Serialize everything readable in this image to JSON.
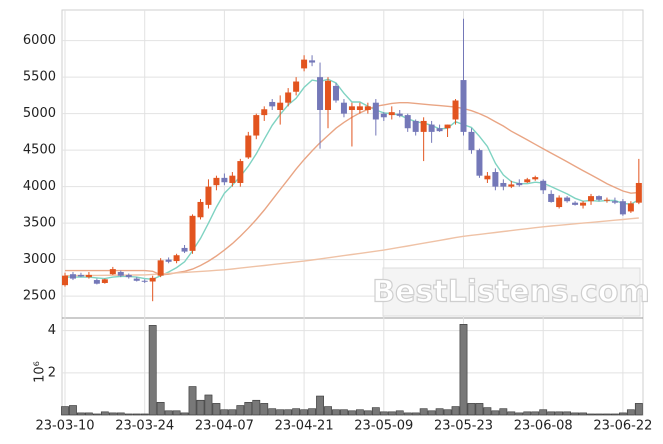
{
  "chart_data": [
    {
      "type": "candlestick",
      "categories": [
        "23-03-10",
        null,
        null,
        null,
        null,
        null,
        null,
        null,
        null,
        null,
        "23-03-24",
        null,
        null,
        null,
        null,
        null,
        null,
        null,
        null,
        null,
        "23-04-07",
        null,
        null,
        null,
        null,
        null,
        null,
        null,
        null,
        null,
        "23-04-21",
        null,
        null,
        null,
        null,
        null,
        null,
        null,
        null,
        null,
        "23-05-09",
        null,
        null,
        null,
        null,
        null,
        null,
        null,
        null,
        null,
        "23-05-23",
        null,
        null,
        null,
        null,
        null,
        null,
        null,
        null,
        null,
        "23-06-08",
        null,
        null,
        null,
        null,
        null,
        null,
        null,
        null,
        null,
        "23-06-22",
        null,
        null
      ],
      "open": [
        2650,
        2800,
        2790,
        2760,
        2720,
        2680,
        2800,
        2830,
        2790,
        2740,
        2710,
        2700,
        2780,
        3000,
        2980,
        3160,
        3120,
        3580,
        3750,
        4020,
        4120,
        4050,
        4050,
        4400,
        4700,
        4980,
        5160,
        5050,
        5150,
        5300,
        5620,
        5730,
        5500,
        5050,
        5380,
        5150,
        5050,
        5050,
        5050,
        5150,
        5000,
        4980,
        5000,
        4980,
        4900,
        4750,
        4850,
        4800,
        4800,
        4920,
        5460,
        4750,
        4500,
        4100,
        4200,
        4050,
        4000,
        4050,
        4060,
        4100,
        4080,
        3900,
        3720,
        3850,
        3780,
        3740,
        3800,
        3870,
        3810,
        3800,
        3800,
        3660,
        3780
      ],
      "high": [
        2820,
        2830,
        2820,
        2830,
        2740,
        2740,
        2900,
        2850,
        2810,
        2760,
        2730,
        2780,
        3020,
        3030,
        3080,
        3200,
        3620,
        3830,
        4100,
        4150,
        4180,
        4200,
        4380,
        4750,
        5000,
        5100,
        5200,
        5250,
        5350,
        5500,
        5800,
        5800,
        5700,
        5500,
        5420,
        5200,
        5150,
        5150,
        5150,
        5200,
        5020,
        5100,
        5050,
        5000,
        4920,
        4950,
        4900,
        4850,
        4850,
        5200,
        6300,
        4800,
        4520,
        4200,
        4250,
        4100,
        4080,
        4100,
        4120,
        4150,
        4100,
        3950,
        3880,
        3870,
        3800,
        3800,
        3900,
        3880,
        3850,
        3850,
        3830,
        3800,
        4380
      ],
      "low": [
        2630,
        2720,
        2760,
        2740,
        2660,
        2670,
        2790,
        2760,
        2740,
        2700,
        2680,
        2430,
        2760,
        2950,
        2950,
        3090,
        3080,
        3550,
        3700,
        3950,
        4020,
        4000,
        4000,
        4380,
        4650,
        4900,
        5050,
        4850,
        5100,
        5250,
        5580,
        5650,
        4520,
        4800,
        5150,
        4950,
        4550,
        5000,
        5000,
        4700,
        4900,
        4920,
        4950,
        4750,
        4700,
        4350,
        4600,
        4750,
        4680,
        4850,
        4700,
        4450,
        4120,
        4050,
        3950,
        3950,
        3980,
        4000,
        4050,
        4080,
        3900,
        3780,
        3700,
        3780,
        3740,
        3700,
        3750,
        3800,
        3780,
        3760,
        3600,
        3640,
        3760
      ],
      "close": [
        2780,
        2740,
        2770,
        2790,
        2670,
        2730,
        2870,
        2780,
        2760,
        2710,
        2700,
        2750,
        2990,
        2970,
        3060,
        3110,
        3600,
        3790,
        4000,
        4120,
        4060,
        4150,
        4350,
        4700,
        4980,
        5060,
        5100,
        5150,
        5290,
        5440,
        5740,
        5700,
        5050,
        5450,
        5180,
        5000,
        5100,
        5100,
        5100,
        4920,
        4950,
        5020,
        4970,
        4800,
        4750,
        4900,
        4750,
        4760,
        4850,
        5180,
        4750,
        4500,
        4150,
        4150,
        4000,
        4000,
        4030,
        4020,
        4100,
        4130,
        3950,
        3790,
        3850,
        3800,
        3750,
        3780,
        3870,
        3820,
        3820,
        3780,
        3620,
        3770,
        4050
      ],
      "up_color": "#e2541f",
      "down_color": "#7478b8",
      "series": [
        {
          "color": "#7fd3c2",
          "values": [
            2760,
            2760,
            2760,
            2760,
            2750,
            2740,
            2760,
            2770,
            2770,
            2760,
            2740,
            2730,
            2780,
            2830,
            2890,
            2970,
            3120,
            3290,
            3500,
            3720,
            3910,
            4020,
            4140,
            4280,
            4450,
            4650,
            4840,
            4990,
            5120,
            5210,
            5360,
            5460,
            5440,
            5470,
            5420,
            5280,
            5160,
            5160,
            5100,
            5050,
            5010,
            5000,
            4980,
            4930,
            4890,
            4870,
            4840,
            4790,
            4800,
            4890,
            4850,
            4810,
            4690,
            4550,
            4320,
            4160,
            4070,
            4040,
            4040,
            4060,
            4050,
            4000,
            3950,
            3900,
            3840,
            3800,
            3810,
            3800,
            3810,
            3810,
            3770,
            3760,
            3820
          ]
        },
        {
          "color": "#e9a584",
          "values": [
            2850,
            2850,
            2850,
            2850,
            2850,
            2850,
            2850,
            2850,
            2850,
            2850,
            2850,
            2840,
            2790,
            2800,
            2820,
            2840,
            2870,
            2920,
            2980,
            3050,
            3130,
            3220,
            3320,
            3430,
            3550,
            3680,
            3820,
            3960,
            4100,
            4240,
            4370,
            4490,
            4600,
            4700,
            4800,
            4880,
            4950,
            5010,
            5060,
            5100,
            5120,
            5140,
            5150,
            5150,
            5140,
            5130,
            5120,
            5110,
            5100,
            5090,
            5070,
            5040,
            5000,
            4950,
            4890,
            4830,
            4760,
            4700,
            4640,
            4580,
            4520,
            4460,
            4400,
            4340,
            4280,
            4220,
            4160,
            4100,
            4040,
            3990,
            3940,
            3910,
            3920
          ]
        },
        {
          "color": "#efc2a6",
          "values": [
            2780,
            2781,
            2782,
            2783,
            2784,
            2785,
            2786,
            2787,
            2788,
            2789,
            2790,
            2797,
            2804,
            2811,
            2818,
            2825,
            2832,
            2839,
            2846,
            2853,
            2860,
            2872,
            2884,
            2896,
            2908,
            2920,
            2932,
            2944,
            2956,
            2968,
            2980,
            2995,
            3010,
            3025,
            3040,
            3055,
            3070,
            3085,
            3100,
            3115,
            3130,
            3149,
            3168,
            3187,
            3206,
            3225,
            3244,
            3263,
            3282,
            3301,
            3320,
            3333,
            3346,
            3359,
            3372,
            3385,
            3398,
            3411,
            3424,
            3437,
            3450,
            3460,
            3470,
            3480,
            3490,
            3500,
            3510,
            3520,
            3530,
            3540,
            3550,
            3560,
            3570
          ]
        }
      ],
      "ylim": [
        2200,
        6420
      ],
      "yticks": [
        2500,
        3000,
        3500,
        4000,
        4500,
        5000,
        5500,
        6000
      ],
      "grid": true,
      "watermark": "BestListens.com"
    },
    {
      "type": "bar",
      "ylabel": "10⁶",
      "color": "#787878",
      "values": [
        0.4,
        0.45,
        0.1,
        0.1,
        0.05,
        0.15,
        0.1,
        0.1,
        0.05,
        0.05,
        0.05,
        4.25,
        0.6,
        0.2,
        0.2,
        0.1,
        1.35,
        0.7,
        0.95,
        0.55,
        0.25,
        0.25,
        0.45,
        0.6,
        0.7,
        0.55,
        0.3,
        0.25,
        0.25,
        0.3,
        0.25,
        0.3,
        0.9,
        0.4,
        0.25,
        0.25,
        0.2,
        0.25,
        0.2,
        0.35,
        0.15,
        0.15,
        0.2,
        0.1,
        0.1,
        0.3,
        0.2,
        0.3,
        0.25,
        0.4,
        4.3,
        0.55,
        0.55,
        0.35,
        0.2,
        0.3,
        0.15,
        0.1,
        0.15,
        0.15,
        0.25,
        0.15,
        0.15,
        0.15,
        0.1,
        0.1,
        0.05,
        0.05,
        0.05,
        0.05,
        0.1,
        0.25,
        0.55
      ],
      "ylim": [
        0,
        4.6
      ],
      "yticks": [
        2,
        4
      ],
      "grid": true
    }
  ]
}
